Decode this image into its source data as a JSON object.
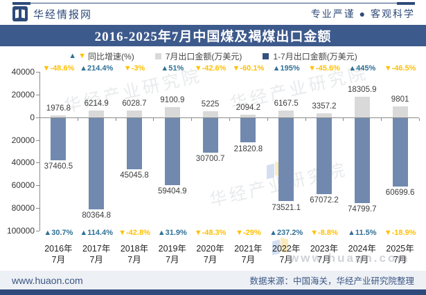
{
  "header": {
    "brand": "华经情报网",
    "slogan": "专业严谨 ● 客观科学"
  },
  "title": "2016-2025年7月中国煤及褐煤出口金额",
  "legend": {
    "growth": "同比增速(%)",
    "july": "7月出口金额(万美元)",
    "cum": "1-7月出口金额(万美元)"
  },
  "chart_data": {
    "type": "bar",
    "title": "2016-2025年7月中国煤及褐煤出口金额",
    "categories": [
      "2016年7月",
      "2017年7月",
      "2018年7月",
      "2019年7月",
      "2020年7月",
      "2021年7月",
      "2022年7月",
      "2023年7月",
      "2024年7月",
      "2025年7月"
    ],
    "series": [
      {
        "key": "july",
        "name": "7月出口金额(万美元)",
        "axis": "up",
        "color": "#D9D9D9",
        "values": [
          1976.8,
          6214.9,
          6028.7,
          9100.9,
          5225,
          2094.2,
          6167.5,
          3357.2,
          18305.9,
          9801
        ]
      },
      {
        "key": "cum",
        "name": "1-7月出口金额(万美元)",
        "axis": "down",
        "color": "#7189AE",
        "values": [
          37460.5,
          80364.8,
          45045.8,
          59404.9,
          30700.7,
          21820.8,
          73521.1,
          67072.2,
          74799.7,
          60699.6
        ]
      },
      {
        "key": "july_growth",
        "name": "同比增速(%)",
        "kind": "growth-top",
        "values": [
          -48.6,
          214.4,
          -3,
          51,
          -42.6,
          -60.1,
          195,
          -45.6,
          445,
          -46.5
        ]
      },
      {
        "key": "cum_growth",
        "name": "同比增速(%)",
        "kind": "growth-bottom",
        "values": [
          30.7,
          114.4,
          -42.8,
          31.9,
          -48.3,
          -29,
          237.2,
          -8.8,
          11.5,
          -18.9
        ]
      }
    ],
    "y_up_max": 40000,
    "y_down_max": 100000,
    "yticks": [
      40000,
      20000,
      0,
      -20000,
      -40000,
      -60000,
      -80000,
      -100000
    ],
    "grid": false,
    "legend_position": "top",
    "growth_colors": {
      "positive": "#2F7096",
      "negative": "#FFC000"
    },
    "legend_swatch_colors": {
      "july": "#D9D9D9",
      "cum": "#34527E"
    }
  },
  "watermark": {
    "text": "华经产业研究院",
    "url": "www.huaon.com"
  },
  "footer": {
    "site": "www.huaon.com",
    "source": "数据来源：中国海关，华经产业研究院整理"
  }
}
